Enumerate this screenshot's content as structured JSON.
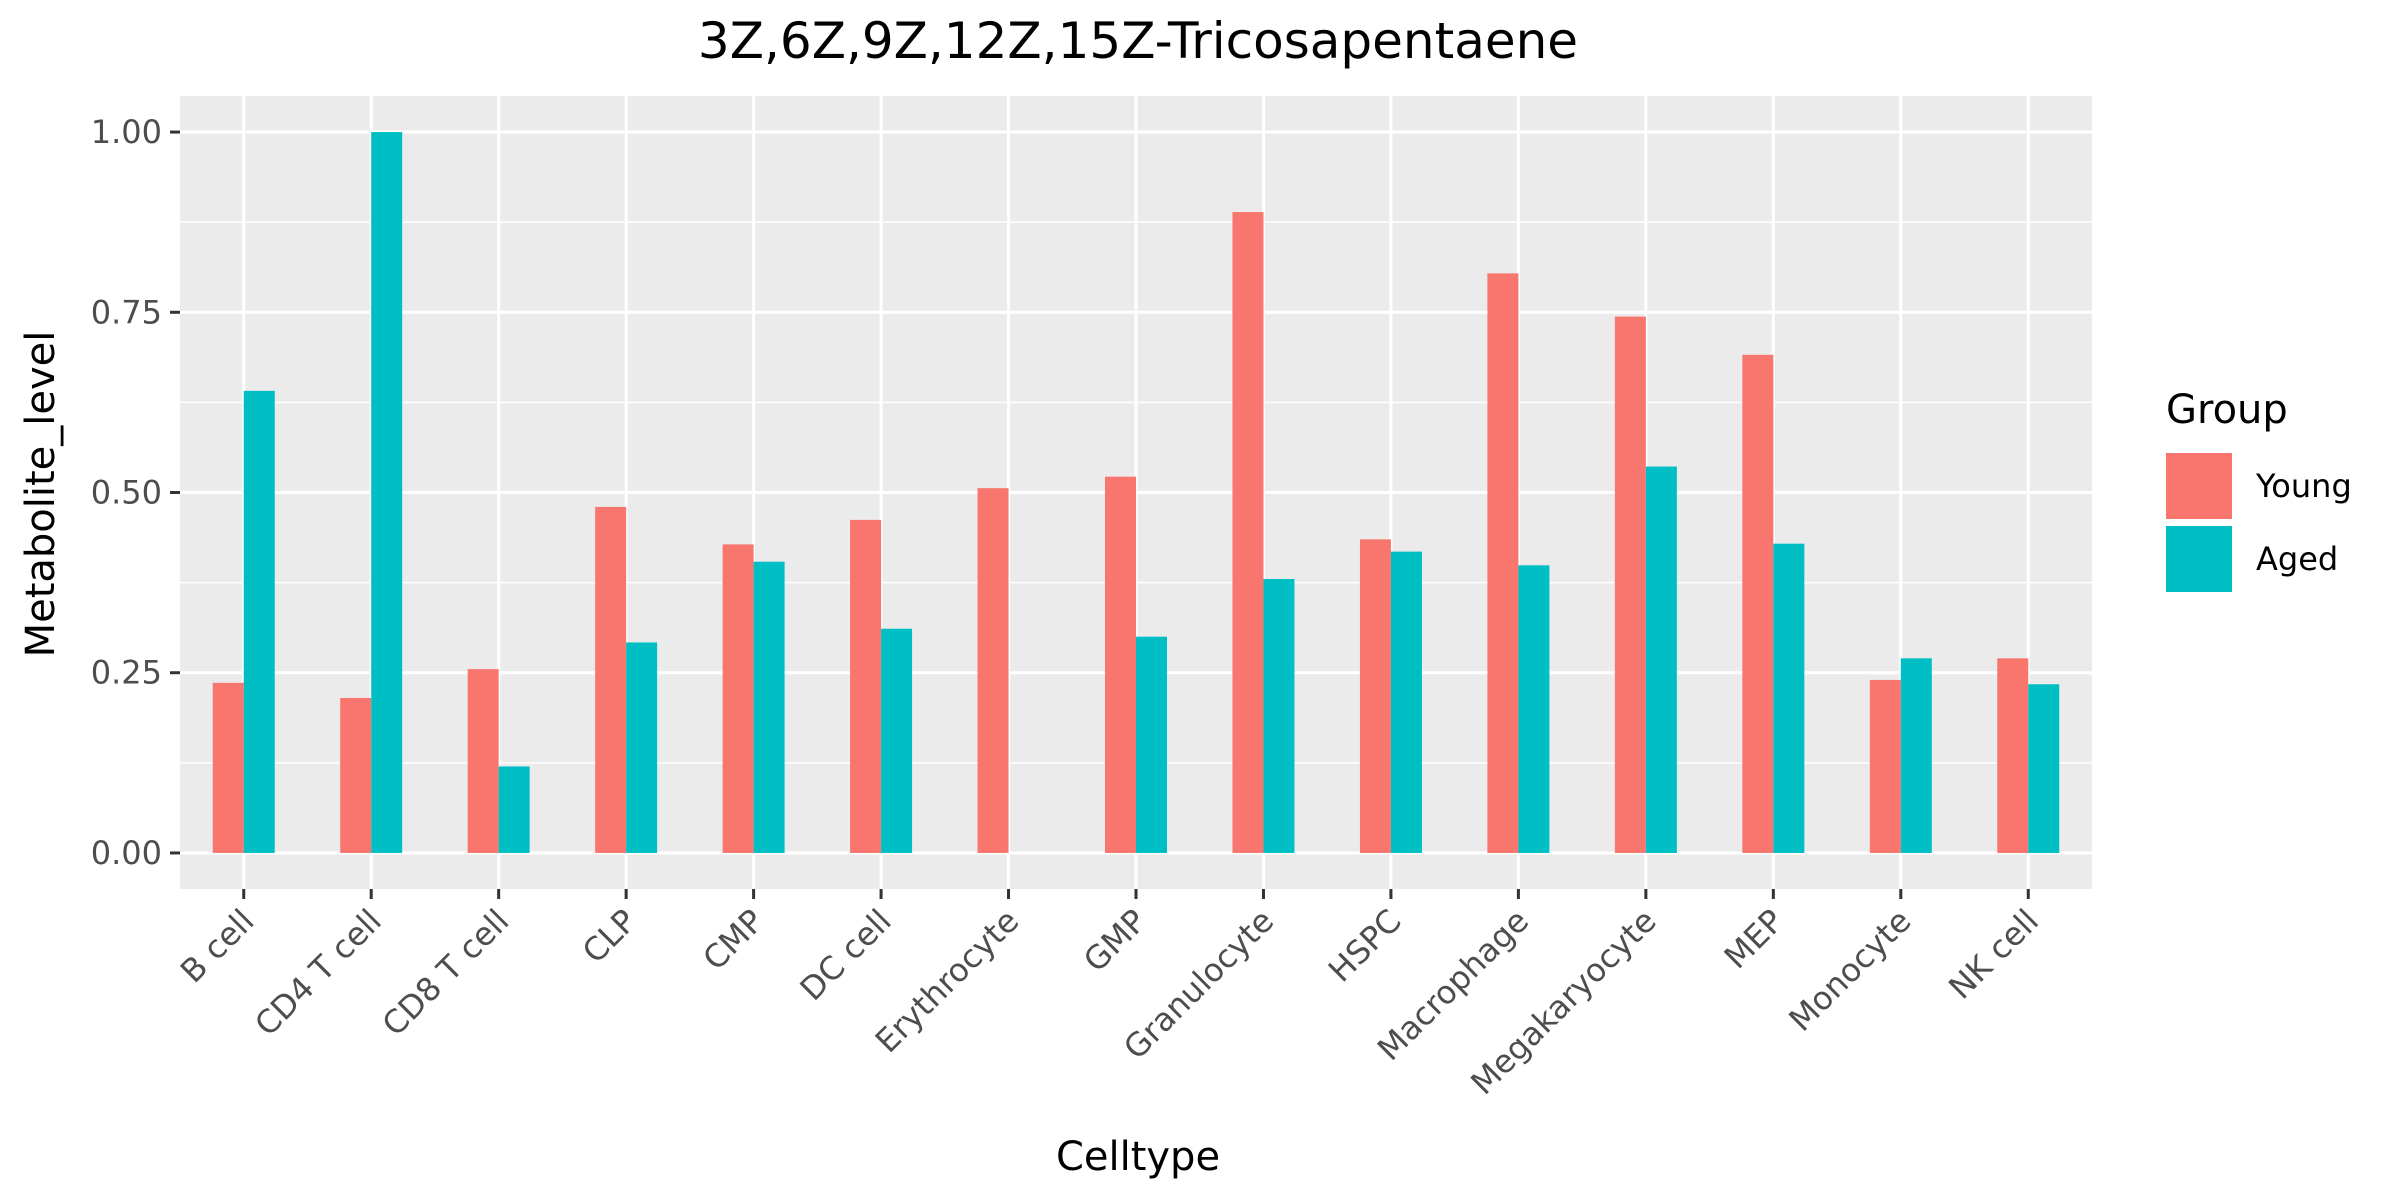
{
  "chart_data": {
    "type": "bar",
    "title": "3Z,6Z,9Z,12Z,15Z-Tricosapentaene",
    "xlabel": "Celltype",
    "ylabel": "Metabolite_level",
    "ylim": [
      -0.05,
      1.05
    ],
    "yticks": [
      0.0,
      0.25,
      0.5,
      0.75,
      1.0
    ],
    "ytick_labels": [
      "0.00",
      "0.25",
      "0.50",
      "0.75",
      "1.00"
    ],
    "grid": true,
    "legend_placement": "right",
    "legend_title": "Group",
    "categories": [
      "B cell",
      "CD4 T cell",
      "CD8 T cell",
      "CLP",
      "CMP",
      "DC cell",
      "Erythrocyte",
      "GMP",
      "Granulocyte",
      "HSPC",
      "Macrophage",
      "Megakaryocyte",
      "MEP",
      "Monocyte",
      "NK cell"
    ],
    "series": [
      {
        "name": "Young",
        "color": "#F8766D",
        "values": [
          0.236,
          0.215,
          0.255,
          0.48,
          0.428,
          0.462,
          0.506,
          0.522,
          0.889,
          0.435,
          0.804,
          0.744,
          0.691,
          0.24,
          0.27
        ]
      },
      {
        "name": "Aged",
        "color": "#00BFC4",
        "values": [
          0.641,
          1.0,
          0.12,
          0.292,
          0.404,
          0.311,
          0.0,
          0.3,
          0.38,
          0.418,
          0.399,
          0.536,
          0.429,
          0.27,
          0.234
        ]
      }
    ]
  }
}
